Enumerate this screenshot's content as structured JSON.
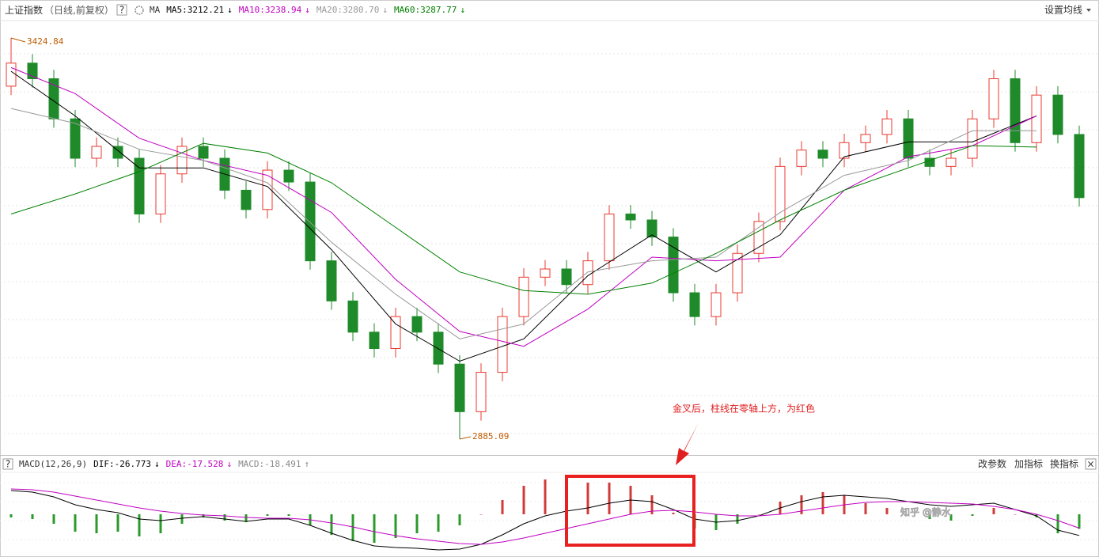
{
  "header": {
    "title": "上证指数",
    "subtitle": "（日线,前复权）",
    "help": "?",
    "ma_label": "MA",
    "settings": "设置均线"
  },
  "chart_data": [
    {
      "type": "candlestick",
      "ylim": [
        2867,
        3444
      ],
      "up_color": "#e8382f",
      "down_color": "#1f8a2a",
      "open": [
        3360,
        3391,
        3370,
        3316,
        3263,
        3279,
        3263,
        3188,
        3242,
        3279,
        3263,
        3220,
        3194,
        3247,
        3231,
        3125,
        3071,
        3029,
        3007,
        3050,
        3029,
        2986,
        2922,
        2975,
        3050,
        3103,
        3114,
        3093,
        3125,
        3188,
        3180,
        3157,
        3082,
        3050,
        3082,
        3135,
        3178,
        3252,
        3274,
        3263,
        3284,
        3295,
        3316,
        3263,
        3252,
        3263,
        3316,
        3370,
        3284,
        3348,
        3295
      ],
      "high": [
        3424.84,
        3403,
        3382,
        3328,
        3291,
        3291,
        3275,
        3254,
        3291,
        3291,
        3275,
        3232,
        3259,
        3259,
        3243,
        3137,
        3083,
        3041,
        3062,
        3062,
        3041,
        2998,
        2987,
        3062,
        3115,
        3126,
        3126,
        3137,
        3200,
        3200,
        3192,
        3169,
        3094,
        3094,
        3147,
        3190,
        3264,
        3286,
        3286,
        3296,
        3307,
        3328,
        3328,
        3275,
        3275,
        3328,
        3382,
        3382,
        3360,
        3360,
        3307
      ],
      "low": [
        3348,
        3358,
        3304,
        3251,
        3251,
        3251,
        3176,
        3176,
        3230,
        3251,
        3208,
        3182,
        3182,
        3219,
        3113,
        3059,
        3017,
        2995,
        2995,
        3017,
        2974,
        2885.09,
        2910,
        2963,
        3038,
        3091,
        3081,
        3081,
        3113,
        3168,
        3145,
        3070,
        3038,
        3038,
        3070,
        3123,
        3166,
        3240,
        3251,
        3251,
        3272,
        3283,
        3251,
        3240,
        3240,
        3251,
        3304,
        3272,
        3272,
        3283,
        3198
      ],
      "close": [
        3391,
        3370,
        3316,
        3263,
        3279,
        3263,
        3188,
        3242,
        3279,
        3263,
        3220,
        3194,
        3247,
        3231,
        3125,
        3071,
        3029,
        3007,
        3050,
        3029,
        2986,
        2922,
        2975,
        3050,
        3103,
        3114,
        3093,
        3125,
        3188,
        3180,
        3157,
        3082,
        3050,
        3082,
        3135,
        3178,
        3252,
        3274,
        3263,
        3284,
        3295,
        3316,
        3263,
        3252,
        3263,
        3316,
        3370,
        3284,
        3348,
        3295,
        3210
      ],
      "ma": [
        {
          "label": "MA5:3212.21",
          "arrow": "↓",
          "color": "#000000",
          "x": [
            0,
            3,
            6,
            9,
            12,
            15,
            18,
            21,
            24,
            27,
            30,
            33,
            36,
            39,
            42,
            45,
            48
          ],
          "values": [
            3380,
            3320,
            3250,
            3250,
            3225,
            3140,
            3040,
            2990,
            3020,
            3105,
            3160,
            3110,
            3160,
            3265,
            3285,
            3285,
            3320
          ]
        },
        {
          "label": "MA10:3238.94",
          "arrow": "↓",
          "color": "#c000c0",
          "x": [
            0,
            3,
            6,
            9,
            12,
            15,
            18,
            21,
            24,
            27,
            30,
            33,
            36,
            39,
            42,
            45,
            48
          ],
          "values": [
            3385,
            3350,
            3290,
            3260,
            3240,
            3190,
            3100,
            3030,
            3010,
            3060,
            3130,
            3125,
            3130,
            3220,
            3265,
            3280,
            3320
          ]
        },
        {
          "label": "MA20:3280.70",
          "arrow": "↓",
          "color": "#999999",
          "x": [
            0,
            3,
            6,
            9,
            12,
            15,
            18,
            21,
            24,
            27,
            30,
            33,
            36,
            39,
            42,
            45,
            48
          ],
          "values": [
            3330,
            3310,
            3275,
            3260,
            3230,
            3150,
            3080,
            3020,
            3040,
            3110,
            3125,
            3130,
            3190,
            3240,
            3260,
            3300,
            3300
          ]
        },
        {
          "label": "MA60:3287.77",
          "arrow": "↓",
          "color": "#008000",
          "x": [
            0,
            3,
            6,
            9,
            12,
            15,
            18,
            21,
            24,
            27,
            30,
            33,
            36,
            39,
            42,
            45,
            48
          ],
          "values": [
            3188,
            3215,
            3245,
            3283,
            3270,
            3230,
            3170,
            3110,
            3085,
            3080,
            3095,
            3135,
            3180,
            3220,
            3250,
            3280,
            3278
          ]
        }
      ]
    },
    {
      "type": "macd",
      "title": "MACD(12,26,9)",
      "ylim": [
        -50,
        50
      ],
      "up_color": "#d23a3a",
      "down_color": "#2a9a2a",
      "histogram": {
        "label": "MACD:-18.491",
        "arrow": "↑",
        "color": "#888888",
        "values": [
          -4,
          -6,
          -12,
          -22,
          -24,
          -22,
          -28,
          -24,
          -12,
          -4,
          -8,
          -10,
          -2,
          -2,
          -14,
          -26,
          -34,
          -36,
          -30,
          -24,
          -22,
          -14,
          0,
          18,
          36,
          44,
          44,
          40,
          40,
          36,
          24,
          2,
          -18,
          -20,
          -12,
          0,
          16,
          24,
          28,
          24,
          14,
          8,
          0,
          -6,
          -8,
          -2,
          8,
          0,
          -4,
          -24,
          -18.491
        ]
      },
      "series": [
        {
          "label": "DIF:-26.773",
          "arrow": "↓",
          "color": "#000000",
          "values": [
            30,
            28,
            22,
            12,
            6,
            2,
            -6,
            -8,
            -5,
            -3,
            -6,
            -9,
            -6,
            -6,
            -14,
            -24,
            -33,
            -40,
            -42,
            -43,
            -45,
            -44,
            -38,
            -26,
            -12,
            -2,
            4,
            8,
            14,
            18,
            16,
            6,
            -6,
            -10,
            -8,
            -2,
            8,
            16,
            22,
            24,
            22,
            20,
            16,
            12,
            10,
            12,
            14,
            6,
            -2,
            -20,
            -26.773
          ]
        },
        {
          "label": "DEA:-17.528",
          "arrow": "↓",
          "color": "#c000c0",
          "values": [
            32,
            31,
            28,
            23,
            18,
            13,
            8,
            4,
            1,
            -1,
            -2,
            -4,
            -5,
            -5,
            -7,
            -11,
            -16,
            -22,
            -27,
            -31,
            -34,
            -37,
            -38,
            -35,
            -30,
            -24,
            -18,
            -12,
            -6,
            0,
            4,
            5,
            3,
            0,
            -2,
            -2,
            0,
            4,
            8,
            12,
            15,
            16,
            16,
            15,
            14,
            13,
            10,
            6,
            0,
            -8,
            -17.528
          ]
        }
      ],
      "buttons": [
        "改参数",
        "加指标",
        "换指标"
      ],
      "close": "×"
    }
  ],
  "annotation": "金叉后，柱线在零轴上方，为红色",
  "watermark": "知乎 @静水"
}
